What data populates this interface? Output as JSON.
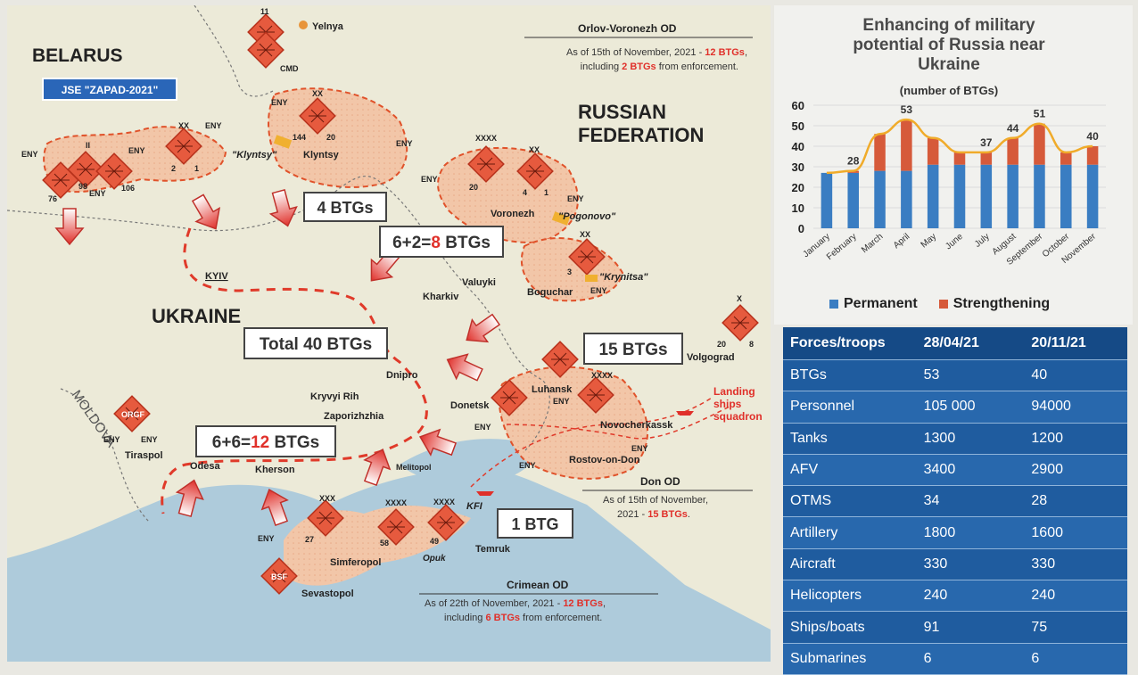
{
  "map": {
    "country_labels": {
      "belarus": "BELARUS",
      "russia_line1": "RUSSIAN",
      "russia_line2": "FEDERATION",
      "ukraine": "UKRAINE",
      "moldova": "MOLDOVA"
    },
    "exercise_badge": "JSE \"ZAPAD-2021\"",
    "cities": {
      "yelnya": "Yelnya",
      "cmd": "CMD",
      "klyntsy": "Klyntsy",
      "klyntsy_q": "\"Klyntsy\"",
      "voronezh": "Voronezh",
      "pogonovo": "\"Pogonovo\"",
      "valuyki": "Valuyki",
      "kharkiv": "Kharkiv",
      "boguchar": "Boguchar",
      "krynitsa": "\"Krynitsa\"",
      "kyiv": "KYIV",
      "dnipro": "Dnipro",
      "kryvyi_rih": "Kryvyi Rih",
      "zaporizhzhia": "Zaporizhzhia",
      "donetsk": "Donetsk",
      "luhansk": "Luhansk",
      "novocherkassk": "Novocherkassk",
      "volgograd": "Volgograd",
      "rostov": "Rostov-on-Don",
      "odesa": "Odesa",
      "kherson": "Kherson",
      "melitopol": "Melitopol",
      "tiraspol": "Tiraspol",
      "kfi": "KFI",
      "temruk": "Temruk",
      "simferopol": "Simferopol",
      "opuk": "Opuk",
      "sevastopol": "Sevastopol",
      "orgf": "ORGF",
      "bsf": "BSF"
    },
    "eny": "ENY",
    "btg_boxes": {
      "b4": "4 BTGs",
      "b8_pre": "6+2=",
      "b8_hl": "8",
      "b8_post": " BTGs",
      "total": "Total 40 BTGs",
      "b15": "15 BTGs",
      "b12_pre": "6+6=",
      "b12_hl": "12",
      "b12_post": " BTGs",
      "b1": "1 BTG"
    },
    "landing": {
      "l1": "Landing",
      "l2": "ships",
      "l3": "squadron"
    },
    "od_notes": {
      "orlov": {
        "title": "Orlov-Voronezh OD",
        "l1_pre": "As of 15th of November, 2021 - ",
        "l1_hl": "12 BTGs",
        "l1_post": ",",
        "l2_pre": "including ",
        "l2_hl": "2 BTGs",
        "l2_post": " from enforcement."
      },
      "don": {
        "title": "Don OD",
        "l1": "As of 15th of November,",
        "l2_pre": "2021 - ",
        "l2_hl": "15 BTGs",
        "l2_post": "."
      },
      "crimean": {
        "title": "Crimean OD",
        "l1_pre": "As of 22th of November, 2021 - ",
        "l1_hl": "12 BTGs",
        "l1_post": ",",
        "l2_pre": "including ",
        "l2_hl": "6 BTGs",
        "l2_post": " from enforcement."
      }
    },
    "unit_labels": {
      "xx": "XX",
      "xxx": "XXX",
      "xxxx": "XXXX",
      "x": "X",
      "ii": "II",
      "n144": "144",
      "n20": "20",
      "n2": "2",
      "n1": "1",
      "n98": "98",
      "n106": "106",
      "n76": "76",
      "n4": "4",
      "n3": "3",
      "n8": "8",
      "n27": "27",
      "n58": "58",
      "n49": "49",
      "n11": "11"
    }
  },
  "chart": {
    "title_l1": "Enhancing of military",
    "title_l2": "potential of Russia near",
    "title_l3": "Ukraine",
    "subtitle": "(number of BTGs)",
    "legend_permanent": "Permanent",
    "legend_strengthening": "Strengthening",
    "colors": {
      "permanent": "#3a7dc2",
      "strengthening": "#d65a3a",
      "line": "#f0ab2a"
    }
  },
  "chart_data": {
    "type": "bar",
    "stacked": true,
    "categories": [
      "January",
      "February",
      "March",
      "April",
      "May",
      "June",
      "July",
      "August",
      "September",
      "October",
      "November"
    ],
    "series": [
      {
        "name": "Permanent",
        "values": [
          27,
          27,
          28,
          28,
          31,
          31,
          31,
          31,
          31,
          31,
          31
        ]
      },
      {
        "name": "Strengthening",
        "values": [
          0,
          1,
          18,
          25,
          13,
          6,
          6,
          13,
          20,
          6,
          9
        ]
      }
    ],
    "data_labels": {
      "February": 28,
      "April": 53,
      "July": 37,
      "August": 44,
      "September": 51,
      "November": 40
    },
    "yticks": [
      0,
      10,
      20,
      30,
      40,
      50,
      60
    ],
    "ylim": [
      0,
      60
    ],
    "legend_position": "bottom"
  },
  "table": {
    "headers": [
      "Forces/troops",
      "28/04/21",
      "20/11/21"
    ],
    "rows": [
      [
        "BTGs",
        "53",
        "40"
      ],
      [
        "Personnel",
        "105 000",
        "94000"
      ],
      [
        "Tanks",
        "1300",
        "1200"
      ],
      [
        "AFV",
        "3400",
        "2900"
      ],
      [
        "OTMS",
        "34",
        "28"
      ],
      [
        "Artillery",
        "1800",
        "1600"
      ],
      [
        "Aircraft",
        "330",
        "330"
      ],
      [
        "Helicopters",
        "240",
        "240"
      ],
      [
        "Ships/boats",
        "91",
        "75"
      ],
      [
        "Submarines",
        "6",
        "6"
      ]
    ]
  }
}
